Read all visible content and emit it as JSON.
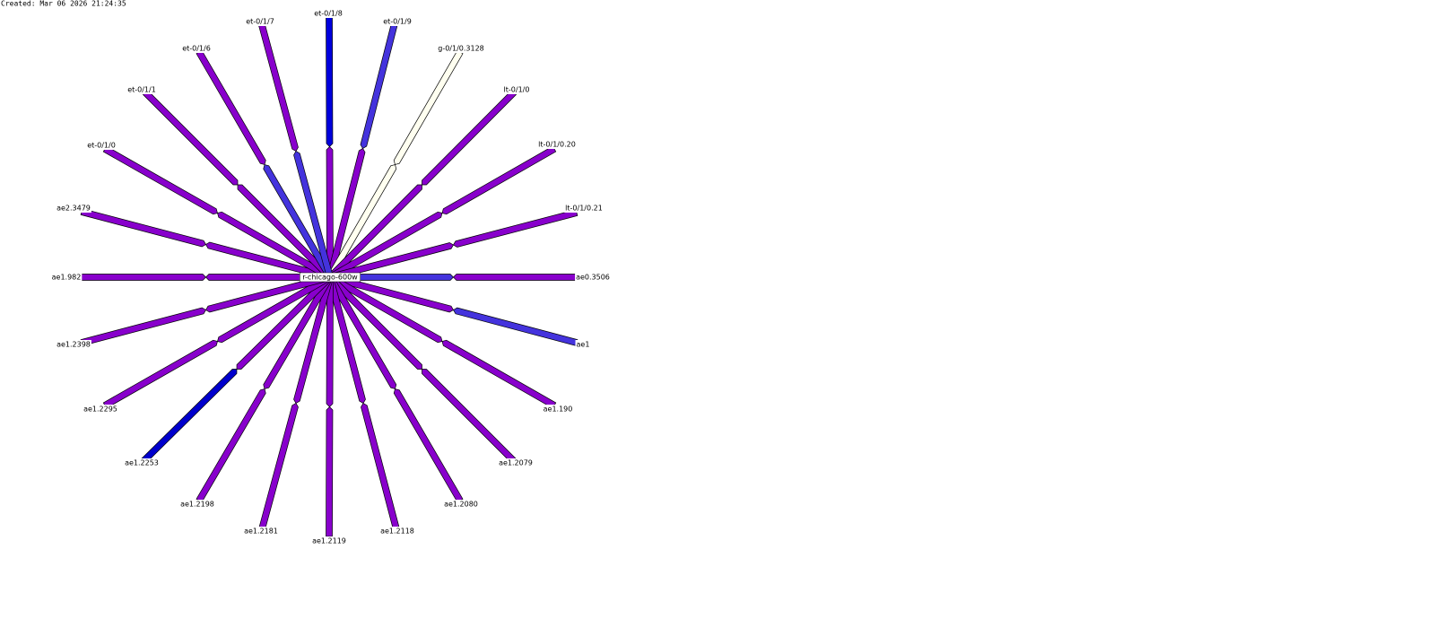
{
  "created": "Created: Mar 06 2026 21:24:35",
  "node": {
    "label": "r-chicago-600w"
  },
  "links": [
    {
      "label": "et-0/1/8",
      "out_color": "#0000dd",
      "in_color": "#8800cc"
    },
    {
      "label": "et-0/1/9",
      "out_color": "#4433dd",
      "in_color": "#8800cc"
    },
    {
      "label": "g-0/1/0.3128",
      "out_color": "#fffff0",
      "in_color": "#fffff0"
    },
    {
      "label": "lt-0/1/0",
      "out_color": "#8800cc",
      "in_color": "#8800cc"
    },
    {
      "label": "lt-0/1/0.20",
      "out_color": "#8800cc",
      "in_color": "#8800cc"
    },
    {
      "label": "lt-0/1/0.21",
      "out_color": "#8800cc",
      "in_color": "#8800cc"
    },
    {
      "label": "ae0.3506",
      "out_color": "#8800cc",
      "in_color": "#4433dd"
    },
    {
      "label": "ae1",
      "out_color": "#4433dd",
      "in_color": "#8800cc"
    },
    {
      "label": "ae1.190",
      "out_color": "#8800cc",
      "in_color": "#8800cc"
    },
    {
      "label": "ae1.2079",
      "out_color": "#8800cc",
      "in_color": "#8800cc"
    },
    {
      "label": "ae1.2080",
      "out_color": "#8800cc",
      "in_color": "#8800cc"
    },
    {
      "label": "ae1.2118",
      "out_color": "#8800cc",
      "in_color": "#8800cc"
    },
    {
      "label": "ae1.2119",
      "out_color": "#8800cc",
      "in_color": "#8800cc"
    },
    {
      "label": "ae1.2181",
      "out_color": "#8800cc",
      "in_color": "#8800cc"
    },
    {
      "label": "ae1.2198",
      "out_color": "#8800cc",
      "in_color": "#8800cc"
    },
    {
      "label": "ae1.2253",
      "out_color": "#0000cc",
      "in_color": "#8800cc"
    },
    {
      "label": "ae1.2295",
      "out_color": "#8800cc",
      "in_color": "#8800cc"
    },
    {
      "label": "ae1.2398",
      "out_color": "#8800cc",
      "in_color": "#8800cc"
    },
    {
      "label": "ae1.982",
      "out_color": "#8800cc",
      "in_color": "#8800cc"
    },
    {
      "label": "ae2.3479",
      "out_color": "#8800cc",
      "in_color": "#8800cc"
    },
    {
      "label": "et-0/1/0",
      "out_color": "#8800cc",
      "in_color": "#8800cc"
    },
    {
      "label": "et-0/1/1",
      "out_color": "#8800cc",
      "in_color": "#8800cc"
    },
    {
      "label": "et-0/1/6",
      "out_color": "#8800cc",
      "in_color": "#4433dd"
    },
    {
      "label": "et-0/1/7",
      "out_color": "#8800cc",
      "in_color": "#4433dd"
    }
  ]
}
